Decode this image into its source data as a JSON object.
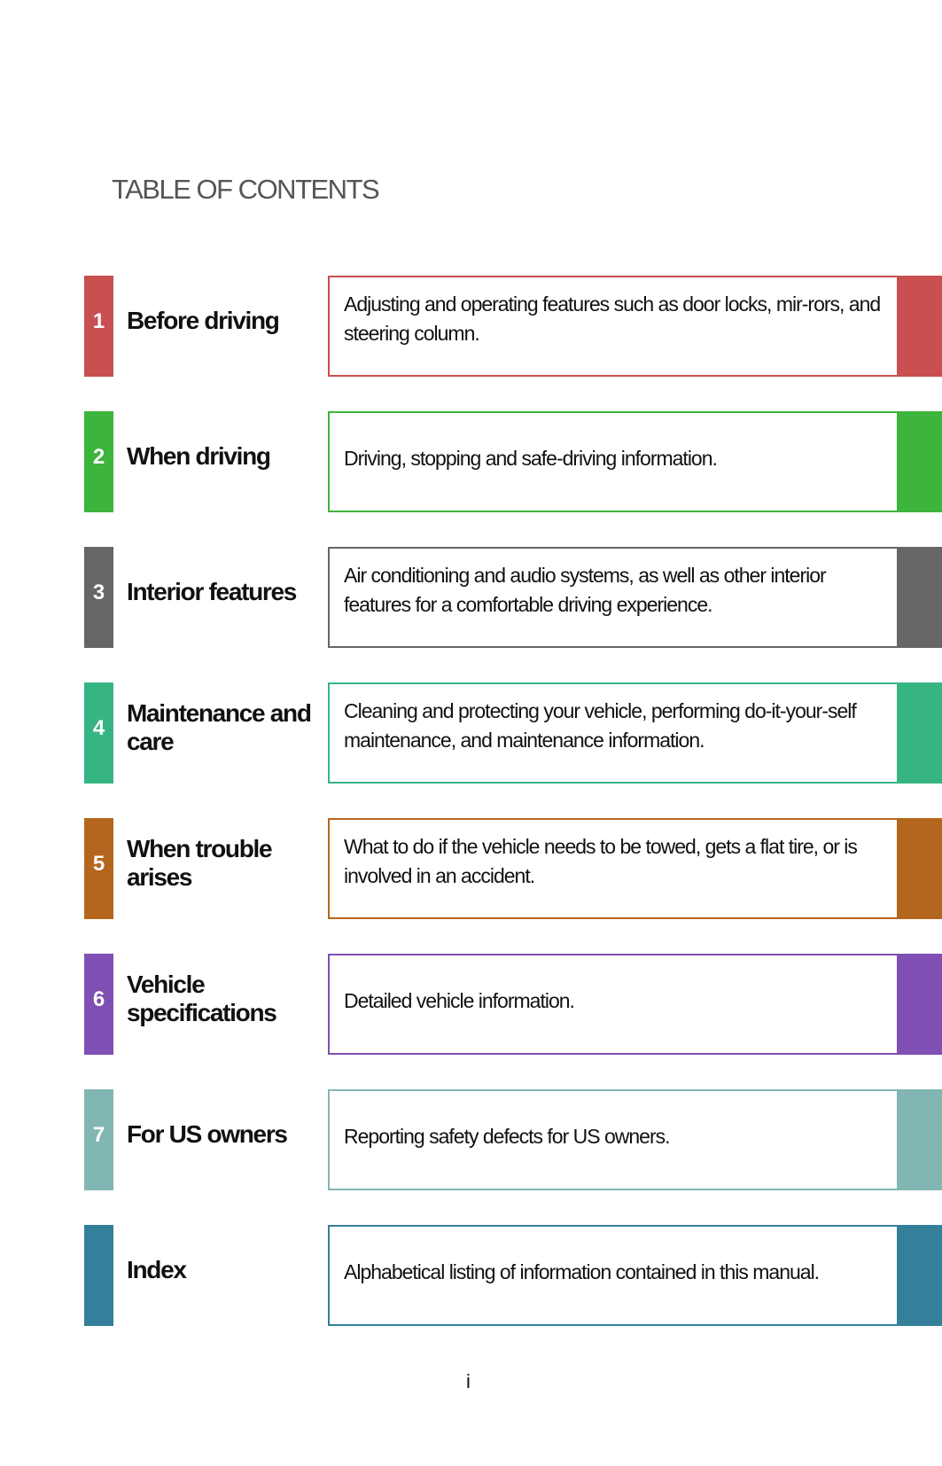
{
  "title": "TABLE OF CONTENTS",
  "sections": [
    {
      "number": "1",
      "label": "Before driving",
      "description": "Adjusting and operating features such as door locks, mir-rors, and steering column.",
      "color": "#c94f50"
    },
    {
      "number": "2",
      "label": "When driving",
      "description": "Driving, stopping and safe-driving information.",
      "color": "#3db43b"
    },
    {
      "number": "3",
      "label": "Interior features",
      "description": "Air conditioning and audio systems, as well as other interior features for a comfortable driving experience.",
      "color": "#666666"
    },
    {
      "number": "4",
      "label": "Maintenance and care",
      "description": "Cleaning and protecting your vehicle, performing do-it-your-self maintenance, and maintenance information.",
      "color": "#36b583"
    },
    {
      "number": "5",
      "label": "When trouble arises",
      "description": "What to do if the vehicle needs to be towed, gets a flat tire, or is involved in an accident.",
      "color": "#b5661e"
    },
    {
      "number": "6",
      "label": "Vehicle specifications",
      "description": "Detailed vehicle information.",
      "color": "#7f4fb3"
    },
    {
      "number": "7",
      "label": "For US owners",
      "description": "Reporting safety defects for US owners.",
      "color": "#82b6b3"
    },
    {
      "number": "",
      "label": "Index",
      "description": "Alphabetical listing of information contained in this manual.",
      "color": "#347f9a"
    }
  ],
  "page_number": "i"
}
